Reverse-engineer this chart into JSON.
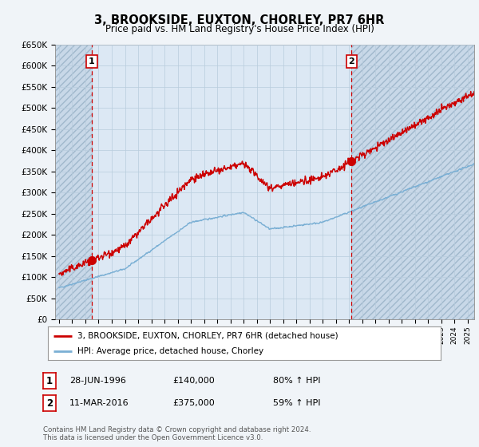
{
  "title": "3, BROOKSIDE, EUXTON, CHORLEY, PR7 6HR",
  "subtitle": "Price paid vs. HM Land Registry's House Price Index (HPI)",
  "legend_line1": "3, BROOKSIDE, EUXTON, CHORLEY, PR7 6HR (detached house)",
  "legend_line2": "HPI: Average price, detached house, Chorley",
  "sale1_date": "28-JUN-1996",
  "sale1_price": "£140,000",
  "sale1_hpi": "80% ↑ HPI",
  "sale1_year": 1996.49,
  "sale1_value": 140000,
  "sale2_date": "11-MAR-2016",
  "sale2_price": "£375,000",
  "sale2_hpi": "59% ↑ HPI",
  "sale2_year": 2016.19,
  "sale2_value": 375000,
  "red_line_color": "#cc0000",
  "blue_line_color": "#7aafd4",
  "dashed_line_color": "#cc0000",
  "background_color": "#f0f4f8",
  "plot_bg_color": "#dce8f4",
  "hatch_region_color": "#c8d8e8",
  "grid_color": "#b8ccdd",
  "ylim": [
    0,
    650000
  ],
  "yticks": [
    0,
    50000,
    100000,
    150000,
    200000,
    250000,
    300000,
    350000,
    400000,
    450000,
    500000,
    550000,
    600000,
    650000
  ],
  "xlim_start": 1993.7,
  "xlim_end": 2025.5,
  "footer": "Contains HM Land Registry data © Crown copyright and database right 2024.\nThis data is licensed under the Open Government Licence v3.0."
}
